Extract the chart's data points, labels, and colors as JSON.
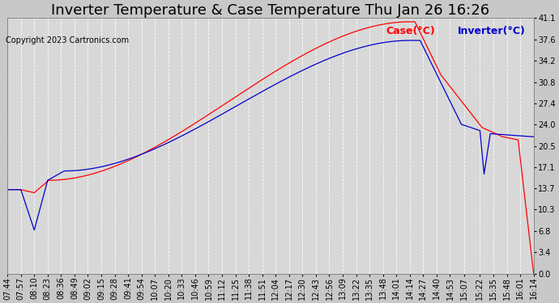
{
  "title": "Inverter Temperature & Case Temperature Thu Jan 26 16:26",
  "copyright": "Copyright 2023 Cartronics.com",
  "legend_case": "Case(°C)",
  "legend_inverter": "Inverter(°C)",
  "yticks": [
    0.0,
    3.4,
    6.8,
    10.3,
    13.7,
    17.1,
    20.5,
    24.0,
    27.4,
    30.8,
    34.2,
    37.6,
    41.1
  ],
  "ymin": 0.0,
  "ymax": 41.1,
  "xtick_labels": [
    "07:44",
    "07:57",
    "08:10",
    "08:23",
    "08:36",
    "08:49",
    "09:02",
    "09:15",
    "09:28",
    "09:41",
    "09:54",
    "10:07",
    "10:20",
    "10:33",
    "10:46",
    "10:59",
    "11:12",
    "11:25",
    "11:38",
    "11:51",
    "12:04",
    "12:17",
    "12:30",
    "12:43",
    "12:56",
    "13:09",
    "13:22",
    "13:35",
    "13:48",
    "14:01",
    "14:14",
    "14:27",
    "14:40",
    "14:53",
    "15:07",
    "15:22",
    "15:35",
    "15:48",
    "16:01",
    "16:14"
  ],
  "bg_color": "#c8c8c8",
  "plot_bg_color": "#d8d8d8",
  "grid_color": "#ffffff",
  "case_color": "#ff0000",
  "inverter_color": "#0000cc",
  "title_fontsize": 13,
  "label_fontsize": 7,
  "copyright_fontsize": 7,
  "legend_case_fontsize": 9,
  "legend_inverter_fontsize": 9
}
